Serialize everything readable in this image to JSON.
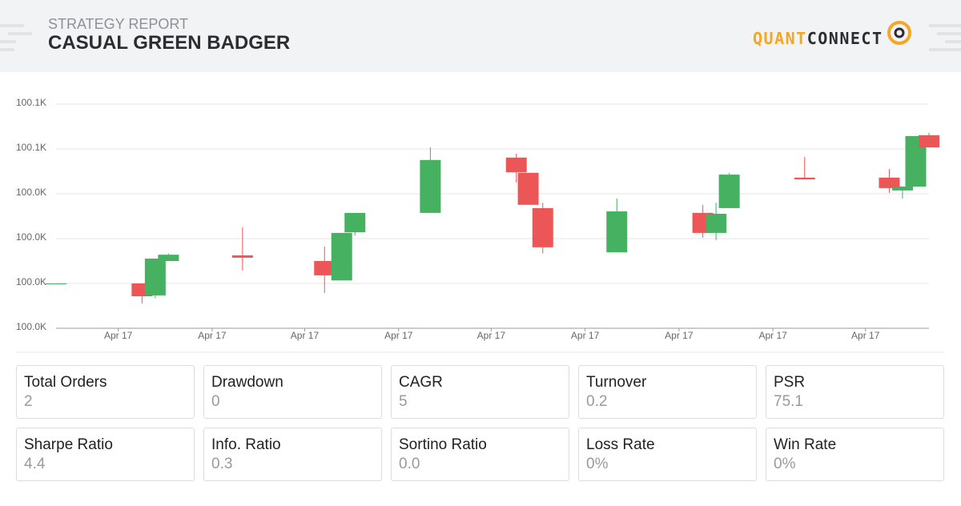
{
  "header": {
    "kicker": "STRATEGY REPORT",
    "title": "CASUAL GREEN BADGER",
    "brand": [
      "QUANT",
      "CONNECT"
    ]
  },
  "chart_data": {
    "type": "candlestick",
    "x": [
      0,
      6.5,
      7.5,
      8.5,
      14.1,
      20.3,
      21.6,
      22.6,
      28.3,
      34.8,
      35.7,
      36.8,
      42.4,
      48.9,
      49.9,
      50.9,
      56.6,
      63,
      64,
      65,
      66
    ],
    "open": [
      100015,
      100015,
      100011,
      100022.5,
      100024.4,
      100022.5,
      100016,
      100032.1,
      100038.6,
      100057.1,
      100052,
      100040.2,
      100025.4,
      100038.6,
      100031.9,
      100040.2,
      100050.4,
      100050.4,
      100046.1,
      100047.4,
      100064.6
    ],
    "high": [
      100015,
      100015,
      100023.3,
      100025,
      100033.8,
      100027.3,
      100031.9,
      100038.6,
      100060.5,
      100058.4,
      100052,
      100042,
      100043.4,
      100041.3,
      100042,
      100052,
      100057.3,
      100053.3,
      100047.4,
      100064.3,
      100065.4
    ],
    "low": [
      100015,
      100008.3,
      100010,
      100022.5,
      100019.3,
      100011.8,
      100016,
      100031,
      100038.6,
      100048.8,
      100041.3,
      100025,
      100025.4,
      100030.3,
      100029.5,
      100040.2,
      100049.8,
      100045.3,
      100043.4,
      100047.4,
      100060.5
    ],
    "close": [
      100015,
      100010.7,
      100023.3,
      100024.6,
      100023.6,
      100017.7,
      100031.9,
      100038.6,
      100056.3,
      100052.2,
      100041.3,
      100027.1,
      100039.1,
      100031.9,
      100038.3,
      100051.4,
      100049.8,
      100046.9,
      100047.4,
      100064.3,
      100060.5
    ],
    "up_color": "#45b161",
    "down_color": "#ec5656",
    "xlim": [
      0,
      66
    ],
    "xticks": [
      {
        "value": 4.7,
        "label": "Apr 17"
      },
      {
        "value": 11.8,
        "label": "Apr 17"
      },
      {
        "value": 18.8,
        "label": "Apr 17"
      },
      {
        "value": 25.9,
        "label": "Apr 17"
      },
      {
        "value": 32.9,
        "label": "Apr 17"
      },
      {
        "value": 40,
        "label": "Apr 17"
      },
      {
        "value": 47.1,
        "label": "Apr 17"
      },
      {
        "value": 54.2,
        "label": "Apr 17"
      },
      {
        "value": 61.2,
        "label": "Apr 17"
      }
    ],
    "ylim": [
      100000,
      100075
    ],
    "yticks": [
      {
        "value": 100000,
        "label": "100.0K"
      },
      {
        "value": 100015,
        "label": "100.0K"
      },
      {
        "value": 100030,
        "label": "100.0K"
      },
      {
        "value": 100045,
        "label": "100.0K"
      },
      {
        "value": 100060,
        "label": "100.1K"
      },
      {
        "value": 100075,
        "label": "100.1K"
      }
    ],
    "grid": true
  },
  "metrics": [
    {
      "label": "Total Orders",
      "value": "2"
    },
    {
      "label": "Drawdown",
      "value": "0"
    },
    {
      "label": "CAGR",
      "value": "5"
    },
    {
      "label": "Turnover",
      "value": "0.2"
    },
    {
      "label": "PSR",
      "value": "75.1"
    },
    {
      "label": "Sharpe Ratio",
      "value": "4.4"
    },
    {
      "label": "Info. Ratio",
      "value": "0.3"
    },
    {
      "label": "Sortino Ratio",
      "value": "0.0"
    },
    {
      "label": "Loss Rate",
      "value": "0%"
    },
    {
      "label": "Win Rate",
      "value": "0%"
    }
  ]
}
